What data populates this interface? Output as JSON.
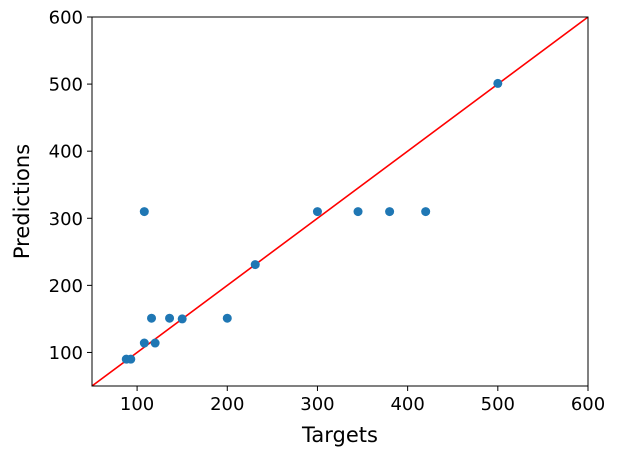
{
  "chart_data": {
    "type": "scatter",
    "title": "",
    "xlabel": "Targets",
    "ylabel": "Predictions",
    "xlim": [
      50,
      600
    ],
    "ylim": [
      50,
      600
    ],
    "xticks": [
      100,
      200,
      300,
      400,
      500,
      600
    ],
    "yticks": [
      100,
      200,
      300,
      400,
      500,
      600
    ],
    "grid": false,
    "series": [
      {
        "type": "scatter",
        "color": "#1f77b4",
        "points": [
          {
            "x": 88,
            "y": 90
          },
          {
            "x": 93,
            "y": 90
          },
          {
            "x": 108,
            "y": 114
          },
          {
            "x": 120,
            "y": 114
          },
          {
            "x": 116,
            "y": 151
          },
          {
            "x": 136,
            "y": 151
          },
          {
            "x": 150,
            "y": 150
          },
          {
            "x": 200,
            "y": 151
          },
          {
            "x": 108,
            "y": 310
          },
          {
            "x": 231,
            "y": 231
          },
          {
            "x": 300,
            "y": 310
          },
          {
            "x": 345,
            "y": 310
          },
          {
            "x": 380,
            "y": 310
          },
          {
            "x": 420,
            "y": 310
          },
          {
            "x": 500,
            "y": 501
          }
        ]
      },
      {
        "type": "line",
        "color": "#ff0000",
        "points": [
          {
            "x": 50,
            "y": 50
          },
          {
            "x": 600,
            "y": 600
          }
        ]
      }
    ]
  }
}
